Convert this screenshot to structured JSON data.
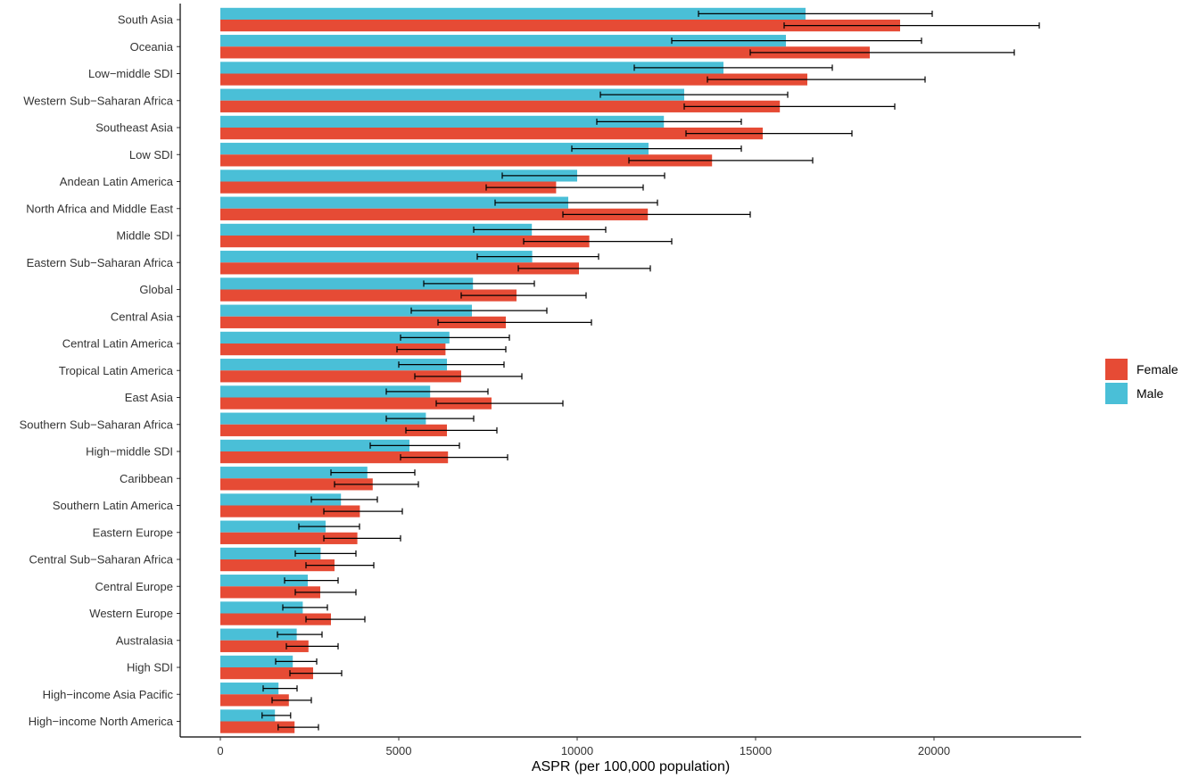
{
  "chart_data": {
    "type": "bar",
    "orientation": "horizontal",
    "title": "",
    "xlabel": "ASPR (per 100,000 population)",
    "ylabel": "",
    "xlim": [
      -1150,
      24100
    ],
    "xticks": [
      0,
      5000,
      10000,
      15000,
      20000
    ],
    "xtick_labels": [
      "0",
      "5000",
      "10000",
      "15000",
      "20000"
    ],
    "grid": false,
    "legend_position": "right",
    "categories": [
      "South Asia",
      "Oceania",
      "Low−middle SDI",
      "Western Sub−Saharan Africa",
      "Southeast Asia",
      "Low SDI",
      "Andean Latin America",
      "North Africa and Middle East",
      "Middle SDI",
      "Eastern Sub−Saharan Africa",
      "Global",
      "Central Asia",
      "Central Latin America",
      "Tropical Latin America",
      "East Asia",
      "Southern Sub−Saharan Africa",
      "High−middle SDI",
      "Caribbean",
      "Southern Latin America",
      "Eastern Europe",
      "Central Sub−Saharan Africa",
      "Central Europe",
      "Western Europe",
      "Australasia",
      "High SDI",
      "High−income Asia Pacific",
      "High−income North America"
    ],
    "series": [
      {
        "name": "Male",
        "color": "#4ABFD7",
        "values": [
          16400,
          15850,
          14100,
          13000,
          12430,
          12000,
          10000,
          9750,
          8730,
          8740,
          7080,
          7050,
          6420,
          6350,
          5880,
          5760,
          5300,
          4120,
          3380,
          2950,
          2810,
          2450,
          2310,
          2140,
          2030,
          1630,
          1530
        ],
        "lower": [
          13400,
          12650,
          11600,
          10650,
          10550,
          9850,
          7900,
          7700,
          7100,
          7200,
          5700,
          5350,
          5050,
          5000,
          4650,
          4650,
          4200,
          3100,
          2550,
          2200,
          2100,
          1800,
          1750,
          1600,
          1550,
          1200,
          1170
        ],
        "upper": [
          19950,
          19650,
          17150,
          15900,
          14600,
          14600,
          12450,
          12250,
          10800,
          10600,
          8800,
          9150,
          8100,
          7950,
          7500,
          7100,
          6700,
          5450,
          4400,
          3900,
          3800,
          3300,
          3000,
          2850,
          2700,
          2150,
          1970
        ]
      },
      {
        "name": "Female",
        "color": "#E64B35",
        "values": [
          19050,
          18200,
          16450,
          15680,
          15200,
          13780,
          9410,
          11980,
          10340,
          10050,
          8300,
          8000,
          6310,
          6750,
          7600,
          6350,
          6380,
          4270,
          3910,
          3840,
          3200,
          2800,
          3100,
          2470,
          2600,
          1920,
          2080
        ],
        "lower": [
          15800,
          14850,
          13650,
          13000,
          13050,
          11450,
          7450,
          9600,
          8500,
          8350,
          6750,
          6100,
          4950,
          5450,
          6050,
          5200,
          5050,
          3200,
          2900,
          2900,
          2400,
          2100,
          2400,
          1850,
          1950,
          1450,
          1620
        ],
        "upper": [
          22950,
          22250,
          19750,
          18900,
          17700,
          16600,
          11850,
          14850,
          12650,
          12050,
          10250,
          10400,
          8000,
          8450,
          9600,
          7750,
          8050,
          5550,
          5100,
          5050,
          4300,
          3800,
          4050,
          3300,
          3400,
          2550,
          2750
        ]
      }
    ],
    "legend": [
      {
        "name": "Female",
        "color": "#E64B35"
      },
      {
        "name": "Male",
        "color": "#4ABFD7"
      }
    ]
  }
}
